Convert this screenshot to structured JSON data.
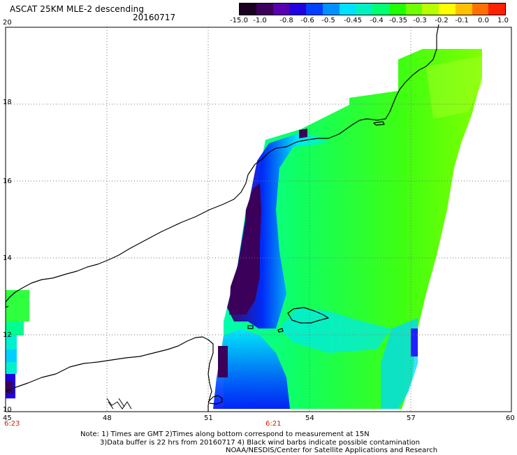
{
  "header": {
    "title": "ASCAT 25KM MLE-2 descending",
    "date": "20160717"
  },
  "colorbar": {
    "labels": [
      "-15.0",
      "-1.0",
      "-0.8",
      "-0.6",
      "-0.5",
      "-0.45",
      "-0.4",
      "-0.35",
      "-0.3",
      "-0.2",
      "-0.1",
      "0.0",
      "1.0"
    ],
    "colors": [
      "#1a0020",
      "#3a005a",
      "#5800b0",
      "#2000e0",
      "#0040ff",
      "#0090ff",
      "#00e0ff",
      "#00f0c0",
      "#00ff70",
      "#20ff00",
      "#70ff00",
      "#b8ff00",
      "#ffff00",
      "#ffc000",
      "#ff7000",
      "#ff2000"
    ]
  },
  "axes": {
    "x_ticks": [
      "45",
      "48",
      "51",
      "54",
      "57",
      "60"
    ],
    "y_ticks": [
      "10",
      "12",
      "14",
      "16",
      "18",
      "20"
    ],
    "time_labels": [
      "6:23",
      "6:21"
    ]
  },
  "notes": [
    "Note: 1) Times are GMT 2)Times along bottom correspond to measurement at 15N",
    "3)Data buffer is 22 hrs from 20160717 4) Black wind barbs indicate possible contamination",
    "NOAA/NESDIS/Center for Satellite Applications and Research"
  ]
}
